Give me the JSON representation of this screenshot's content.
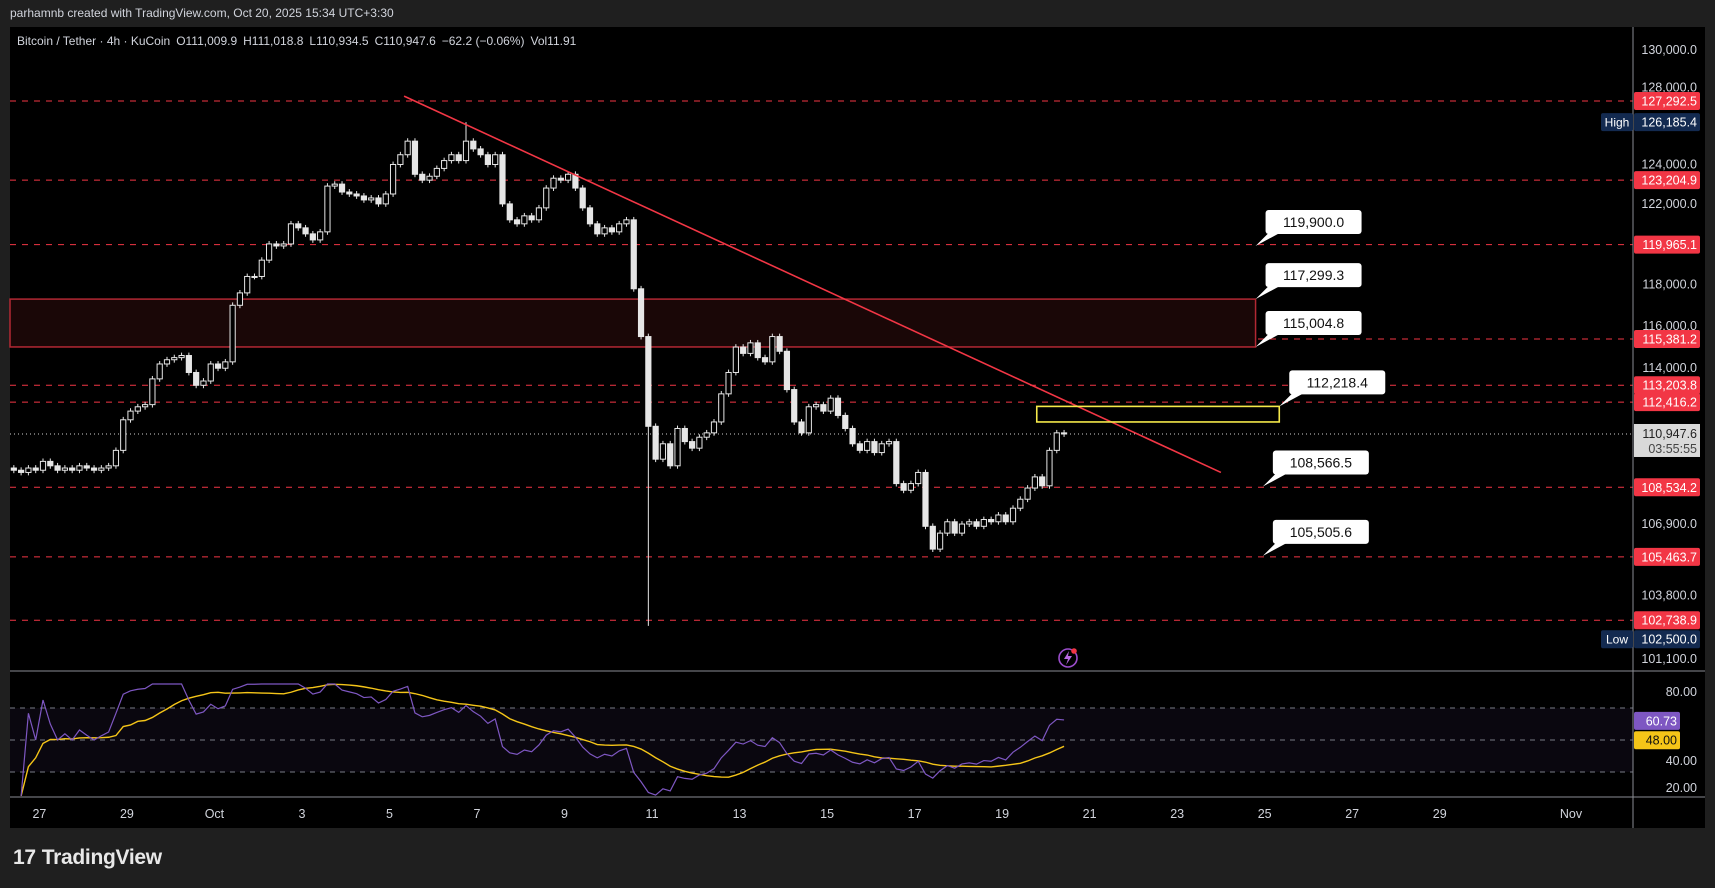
{
  "header": {
    "credit": "parhamnb created with TradingView.com, Oct 20, 2025 15:34 UTC+3:30"
  },
  "legend": {
    "symbol": "Bitcoin / Tether · 4h · KuCoin",
    "open": "O111,009.9",
    "high": "H111,018.8",
    "low": "L110,934.5",
    "close": "C110,947.6",
    "change": "−62.2 (−0.06%)",
    "volume": "Vol11.91"
  },
  "branding": {
    "logo_text": "TradingView"
  },
  "colors": {
    "background": "#000000",
    "frame": "#1f1f1f",
    "candle": "#e6e6e6",
    "level": "#f23645",
    "trendline": "#f23645",
    "zone_border": "#b22833",
    "zone_fill": "#1a0707",
    "highlight_box": "#f5e94a",
    "rsi_line": "#7e57c2",
    "rsi_ma": "#f5c518",
    "high_low_badge": "#132a50"
  },
  "chart_data": {
    "type": "candlestick",
    "start": "2025-09-26T08:00",
    "interval": "4h",
    "scale": "log",
    "closes": [
      109300,
      109200,
      109400,
      109300,
      109700,
      109500,
      109300,
      109400,
      109300,
      109500,
      109400,
      109300,
      109400,
      109500,
      110200,
      111600,
      112000,
      112200,
      112300,
      113500,
      114200,
      114400,
      114500,
      114600,
      113800,
      113200,
      113400,
      114200,
      114000,
      114300,
      117000,
      117600,
      118400,
      118400,
      119200,
      120000,
      119900,
      120000,
      121000,
      120800,
      120500,
      120200,
      120600,
      122900,
      123000,
      122600,
      122500,
      122400,
      122200,
      122300,
      122000,
      122500,
      124000,
      124500,
      125200,
      123500,
      123200,
      123400,
      123800,
      124200,
      124500,
      124200,
      125200,
      124800,
      124500,
      124000,
      124500,
      122000,
      121200,
      121000,
      121400,
      121200,
      121800,
      122800,
      123300,
      123200,
      123500,
      122800,
      121800,
      121000,
      120500,
      120800,
      120600,
      121000,
      121200,
      117800,
      115500,
      111300,
      109800,
      110500,
      109500,
      111200,
      110600,
      110300,
      110800,
      111000,
      111500,
      112800,
      113800,
      115000,
      114700,
      115200,
      114500,
      114300,
      115500,
      114800,
      113000,
      111500,
      111000,
      112200,
      112300,
      112000,
      112600,
      111800,
      111200,
      110500,
      110200,
      110600,
      110100,
      110500,
      110600,
      108700,
      108400,
      108700,
      109200,
      106800,
      105800,
      106500,
      107000,
      106500,
      106900,
      107000,
      106800,
      107100,
      107000,
      107300,
      107000,
      107600,
      108000,
      108500,
      109000,
      108600,
      110200,
      111000,
      110947.6
    ],
    "first_open": 109400,
    "notable_wicks": [
      {
        "index": 62,
        "high": 126185.4
      },
      {
        "index": 87,
        "low": 102500.0
      }
    ],
    "price_ticks": [
      "130,000.0",
      "128,000.0",
      "124,000.0",
      "122,000.0",
      "118,000.0",
      "116,000.0",
      "114,000.0",
      "106,900.0",
      "103,800.0",
      "101,100.0"
    ],
    "date_ticks": [
      {
        "label": "27",
        "date": "2025-09-27"
      },
      {
        "label": "29",
        "date": "2025-09-29"
      },
      {
        "label": "Oct",
        "date": "2025-10-01"
      },
      {
        "label": "3",
        "date": "2025-10-03"
      },
      {
        "label": "5",
        "date": "2025-10-05"
      },
      {
        "label": "7",
        "date": "2025-10-07"
      },
      {
        "label": "9",
        "date": "2025-10-09"
      },
      {
        "label": "11",
        "date": "2025-10-11"
      },
      {
        "label": "13",
        "date": "2025-10-13"
      },
      {
        "label": "15",
        "date": "2025-10-15"
      },
      {
        "label": "17",
        "date": "2025-10-17"
      },
      {
        "label": "19",
        "date": "2025-10-19"
      },
      {
        "label": "21",
        "date": "2025-10-21"
      },
      {
        "label": "23",
        "date": "2025-10-23"
      },
      {
        "label": "25",
        "date": "2025-10-25"
      },
      {
        "label": "27",
        "date": "2025-10-27"
      },
      {
        "label": "29",
        "date": "2025-10-29"
      },
      {
        "label": "Nov",
        "date": "2025-11-01"
      }
    ],
    "levels": [
      "127,292.5",
      "123,204.9",
      "119,965.1",
      "115,381.2",
      "113,203.8",
      "112,416.2",
      "108,534.2",
      "105,463.7",
      "102,738.9"
    ],
    "high_marker": {
      "label": "High",
      "value": "126,185.4"
    },
    "low_marker": {
      "label": "Low",
      "value": "102,500.0"
    },
    "last_price": {
      "value": "110,947.6",
      "countdown": "03:55:55"
    },
    "trendline": {
      "from": {
        "time": "2025-10-05T08:00",
        "price": 127550
      },
      "to": {
        "time": "2025-10-24T00:00",
        "price": 109200
      }
    },
    "zone": {
      "from_time": "2025-09-26T00:00",
      "to_time": "2025-10-24T19:00",
      "top": 117299.3,
      "bottom": 115004.8
    },
    "highlight_box": {
      "from_time": "2025-10-19T19:00",
      "to_time": "2025-10-25T08:00",
      "top": 112218.4,
      "bottom": 111500
    },
    "price_notes": [
      {
        "label": "119,900.0",
        "time": "2025-10-24T19:00"
      },
      {
        "label": "117,299.3",
        "time": "2025-10-24T19:00"
      },
      {
        "label": "115,004.8",
        "time": "2025-10-24T19:00"
      },
      {
        "label": "112,218.4",
        "time": "2025-10-25T08:00"
      },
      {
        "label": "108,566.5",
        "time": "2025-10-24T23:00"
      },
      {
        "label": "105,505.6",
        "time": "2025-10-24T23:00"
      }
    ],
    "rsi": {
      "length": 14,
      "ticks": [
        "80.00",
        "40.00",
        "20.00"
      ],
      "upper": 70,
      "middle": 50,
      "lower": 30,
      "value": "60.73",
      "ma_value": "48.00"
    }
  }
}
